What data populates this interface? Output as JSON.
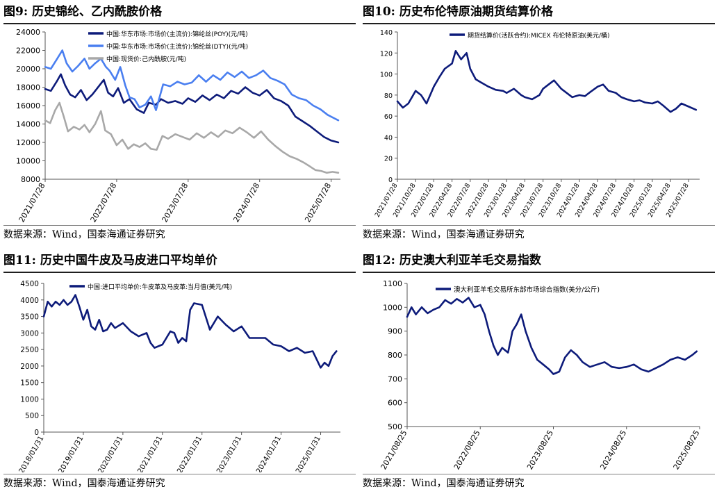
{
  "colors": {
    "navy": "#0d1b7a",
    "blue": "#4a7ff0",
    "gray": "#a8a8a8",
    "axis": "#555555"
  },
  "panels": [
    {
      "title": "图9:  历史锦纶、乙内酰胺价格",
      "source": "数据来源：Wind，国泰海通证券研究",
      "chart_data": {
        "type": "line",
        "y_ticks": [
          8000,
          10000,
          12000,
          14000,
          16000,
          18000,
          20000,
          22000,
          24000
        ],
        "ylim": [
          8000,
          24000
        ],
        "x_tick_labels": [
          "2021/07/28",
          "2022/07/28",
          "2023/07/28",
          "2024/07/28",
          "2025/07/28"
        ],
        "x_tick_positions": [
          0,
          1,
          2,
          3,
          4
        ],
        "xlim": [
          0,
          4.13
        ],
        "series": [
          {
            "name": "中国:华东市场:市场价(主流价):锦纶丝(POY)(元/吨)",
            "color": "navy",
            "x": [
              0,
              0.08,
              0.16,
              0.22,
              0.28,
              0.35,
              0.42,
              0.5,
              0.58,
              0.66,
              0.75,
              0.82,
              0.88,
              0.95,
              1.02,
              1.1,
              1.18,
              1.28,
              1.38,
              1.45,
              1.55,
              1.62,
              1.72,
              1.82,
              1.92,
              2.0,
              2.1,
              2.2,
              2.3,
              2.4,
              2.5,
              2.6,
              2.7,
              2.8,
              2.9,
              3.0,
              3.1,
              3.2,
              3.3,
              3.4,
              3.5,
              3.6,
              3.7,
              3.8,
              3.9,
              4.0,
              4.1
            ],
            "values": [
              17800,
              17600,
              18600,
              19400,
              18200,
              17200,
              16900,
              17700,
              16600,
              17200,
              18100,
              18800,
              17400,
              17000,
              17900,
              16300,
              16700,
              15600,
              15200,
              16300,
              16100,
              16700,
              16300,
              16500,
              16200,
              16800,
              16400,
              17100,
              16600,
              17200,
              16800,
              17600,
              17300,
              18000,
              17400,
              17100,
              17700,
              16800,
              16500,
              16000,
              14800,
              14300,
              13800,
              13200,
              12600,
              12200,
              12000
            ]
          },
          {
            "name": "中国:华东市场:市场价(主流价):锦纶丝(DTY)(元/吨)",
            "color": "blue",
            "x": [
              0,
              0.08,
              0.16,
              0.24,
              0.3,
              0.38,
              0.46,
              0.55,
              0.62,
              0.7,
              0.78,
              0.85,
              0.9,
              0.98,
              1.05,
              1.12,
              1.18,
              1.25,
              1.32,
              1.4,
              1.48,
              1.55,
              1.65,
              1.75,
              1.85,
              1.95,
              2.05,
              2.15,
              2.25,
              2.35,
              2.45,
              2.55,
              2.65,
              2.75,
              2.85,
              2.95,
              3.05,
              3.15,
              3.25,
              3.35,
              3.45,
              3.55,
              3.65,
              3.75,
              3.85,
              3.95,
              4.05,
              4.1
            ],
            "values": [
              20200,
              20000,
              21000,
              22000,
              20600,
              19700,
              20300,
              21100,
              20000,
              20600,
              21100,
              20200,
              19800,
              18800,
              20200,
              18200,
              16900,
              16700,
              15800,
              16100,
              17000,
              15500,
              18300,
              18100,
              18600,
              18300,
              18500,
              19300,
              18600,
              19300,
              18800,
              19600,
              19100,
              19700,
              19000,
              19300,
              19800,
              19000,
              18700,
              18300,
              17200,
              16800,
              16600,
              16000,
              15600,
              15000,
              14600,
              14400
            ]
          },
          {
            "name": "中国:现货价:己内酰胺(元/吨)",
            "color": "gray",
            "x": [
              0,
              0.07,
              0.14,
              0.2,
              0.26,
              0.32,
              0.4,
              0.48,
              0.55,
              0.62,
              0.7,
              0.78,
              0.84,
              0.92,
              1.0,
              1.08,
              1.16,
              1.24,
              1.32,
              1.4,
              1.48,
              1.56,
              1.64,
              1.72,
              1.82,
              1.92,
              2.02,
              2.12,
              2.22,
              2.32,
              2.42,
              2.52,
              2.62,
              2.72,
              2.82,
              2.92,
              3.02,
              3.12,
              3.22,
              3.32,
              3.42,
              3.52,
              3.62,
              3.7,
              3.78,
              3.86,
              3.94,
              4.02,
              4.1
            ],
            "values": [
              14400,
              14100,
              15500,
              16300,
              14800,
              13200,
              13700,
              13400,
              13900,
              13100,
              14000,
              15400,
              13300,
              12900,
              11700,
              12300,
              11300,
              11800,
              11500,
              11900,
              11300,
              11200,
              12700,
              12400,
              12900,
              12600,
              12300,
              13000,
              12500,
              13100,
              12600,
              13300,
              13000,
              13600,
              13100,
              12500,
              13200,
              12300,
              11600,
              11000,
              10500,
              10200,
              9800,
              9400,
              9000,
              8900,
              8700,
              8800,
              8700
            ]
          }
        ]
      }
    },
    {
      "title": "图10:  历史布伦特原油期货结算价格",
      "source": "数据来源：Wind，国泰海通证券研究",
      "chart_data": {
        "type": "line",
        "y_ticks": [
          0,
          20,
          40,
          60,
          80,
          100,
          120,
          140
        ],
        "ylim": [
          0,
          140
        ],
        "x_tick_labels": [
          "2021/07/28",
          "2021/10/28",
          "2022/01/28",
          "2022/04/28",
          "2022/07/28",
          "2022/10/28",
          "2023/01/28",
          "2023/04/28",
          "2023/07/28",
          "2023/10/28",
          "2024/01/28",
          "2024/04/28",
          "2024/07/28",
          "2024/10/28",
          "2025/01/28",
          "2025/04/28",
          "2025/07/28"
        ],
        "x_tick_positions": [
          0,
          1,
          2,
          3,
          4,
          5,
          6,
          7,
          8,
          9,
          10,
          11,
          12,
          13,
          14,
          15,
          16
        ],
        "xlim": [
          0,
          16.6
        ],
        "series": [
          {
            "name": "期货结算价(活跃合约):MICEX 布伦特原油(美元/桶)",
            "color": "navy",
            "x": [
              0,
              0.3,
              0.6,
              1.0,
              1.3,
              1.6,
              2.0,
              2.3,
              2.6,
              3.0,
              3.2,
              3.5,
              3.8,
              4.0,
              4.3,
              4.6,
              5.0,
              5.4,
              5.8,
              6.0,
              6.4,
              6.8,
              7.0,
              7.4,
              7.8,
              8.0,
              8.3,
              8.6,
              9.0,
              9.3,
              9.6,
              10.0,
              10.3,
              10.6,
              11.0,
              11.3,
              11.6,
              12.0,
              12.3,
              12.6,
              13.0,
              13.3,
              13.6,
              14.0,
              14.3,
              14.6,
              15.0,
              15.3,
              15.6,
              16.0,
              16.4
            ],
            "values": [
              74,
              68,
              72,
              84,
              80,
              72,
              88,
              97,
              105,
              110,
              122,
              114,
              120,
              105,
              95,
              92,
              88,
              85,
              84,
              82,
              86,
              80,
              78,
              76,
              80,
              86,
              90,
              94,
              86,
              82,
              78,
              80,
              79,
              83,
              88,
              90,
              84,
              82,
              78,
              76,
              74,
              75,
              73,
              72,
              74,
              70,
              64,
              67,
              72,
              69,
              66
            ]
          }
        ]
      }
    },
    {
      "title": "图11:  历史中国牛皮及马皮进口平均单价",
      "source": "数据来源：Wind，国泰海通证券研究",
      "chart_data": {
        "type": "line",
        "y_ticks": [
          0,
          500,
          1000,
          1500,
          2000,
          2500,
          3000,
          3500,
          4000,
          4500
        ],
        "ylim": [
          0,
          4500
        ],
        "x_tick_labels": [
          "2018/01/31",
          "2019/01/31",
          "2020/01/31",
          "2021/01/31",
          "2022/01/31",
          "2023/01/31",
          "2024/01/31",
          "2025/01/31"
        ],
        "x_tick_positions": [
          0,
          1,
          2,
          3,
          4,
          5,
          6,
          7
        ],
        "xlim": [
          0,
          7.5
        ],
        "series": [
          {
            "name": "中国:进口平均单价:牛皮革及马皮革:当月值(美元/吨)",
            "color": "navy",
            "x": [
              0,
              0.1,
              0.2,
              0.3,
              0.4,
              0.5,
              0.6,
              0.7,
              0.8,
              0.9,
              1.0,
              1.1,
              1.2,
              1.3,
              1.4,
              1.5,
              1.6,
              1.7,
              1.8,
              2.0,
              2.2,
              2.4,
              2.6,
              2.7,
              2.8,
              3.0,
              3.2,
              3.3,
              3.4,
              3.5,
              3.6,
              3.7,
              3.8,
              4.0,
              4.2,
              4.4,
              4.6,
              4.8,
              5.0,
              5.2,
              5.4,
              5.6,
              5.8,
              6.0,
              6.2,
              6.4,
              6.6,
              6.8,
              7.0,
              7.1,
              7.2,
              7.3,
              7.4
            ],
            "values": [
              3500,
              3950,
              3800,
              3950,
              3850,
              4000,
              3850,
              3950,
              4150,
              3800,
              3400,
              3700,
              3200,
              3100,
              3400,
              3050,
              3100,
              3300,
              3150,
              3300,
              3050,
              2900,
              3000,
              2700,
              2550,
              2650,
              3050,
              3000,
              2700,
              2850,
              2750,
              3700,
              3900,
              3850,
              3100,
              3500,
              3250,
              3050,
              3200,
              2850,
              2850,
              2850,
              2650,
              2600,
              2450,
              2550,
              2400,
              2450,
              1950,
              2100,
              2000,
              2300,
              2450
            ]
          }
        ]
      }
    },
    {
      "title": "图12:  历史澳大利亚羊毛交易指数",
      "source": "数据来源：Wind，国泰海通证券研究",
      "chart_data": {
        "type": "line",
        "y_ticks": [
          500,
          600,
          700,
          800,
          900,
          1000,
          1100
        ],
        "ylim": [
          500,
          1100
        ],
        "x_tick_labels": [
          "2021/08/25",
          "2022/08/25",
          "2023/08/25",
          "2024/08/25",
          "2025/08/25"
        ],
        "x_tick_positions": [
          0,
          1,
          2,
          3,
          4
        ],
        "xlim": [
          0,
          4.0
        ],
        "series": [
          {
            "name": "澳大利亚羊毛交易所东部市场综合指数(美分/公斤)",
            "color": "navy",
            "x": [
              0,
              0.06,
              0.12,
              0.2,
              0.28,
              0.36,
              0.44,
              0.52,
              0.6,
              0.68,
              0.76,
              0.84,
              0.92,
              1.0,
              1.06,
              1.12,
              1.18,
              1.24,
              1.3,
              1.38,
              1.44,
              1.5,
              1.56,
              1.62,
              1.7,
              1.78,
              1.86,
              1.94,
              2.0,
              2.08,
              2.16,
              2.24,
              2.32,
              2.4,
              2.5,
              2.6,
              2.7,
              2.8,
              2.9,
              3.0,
              3.1,
              3.2,
              3.3,
              3.4,
              3.5,
              3.6,
              3.7,
              3.8,
              3.9,
              3.96
            ],
            "values": [
              960,
              1000,
              970,
              1000,
              975,
              990,
              1000,
              1030,
              1015,
              1035,
              1020,
              1040,
              1000,
              1010,
              970,
              900,
              840,
              800,
              830,
              810,
              900,
              930,
              970,
              900,
              830,
              780,
              760,
              740,
              720,
              730,
              790,
              820,
              800,
              770,
              750,
              760,
              770,
              750,
              745,
              750,
              760,
              740,
              730,
              745,
              760,
              780,
              790,
              780,
              800,
              815
            ]
          }
        ]
      }
    }
  ]
}
